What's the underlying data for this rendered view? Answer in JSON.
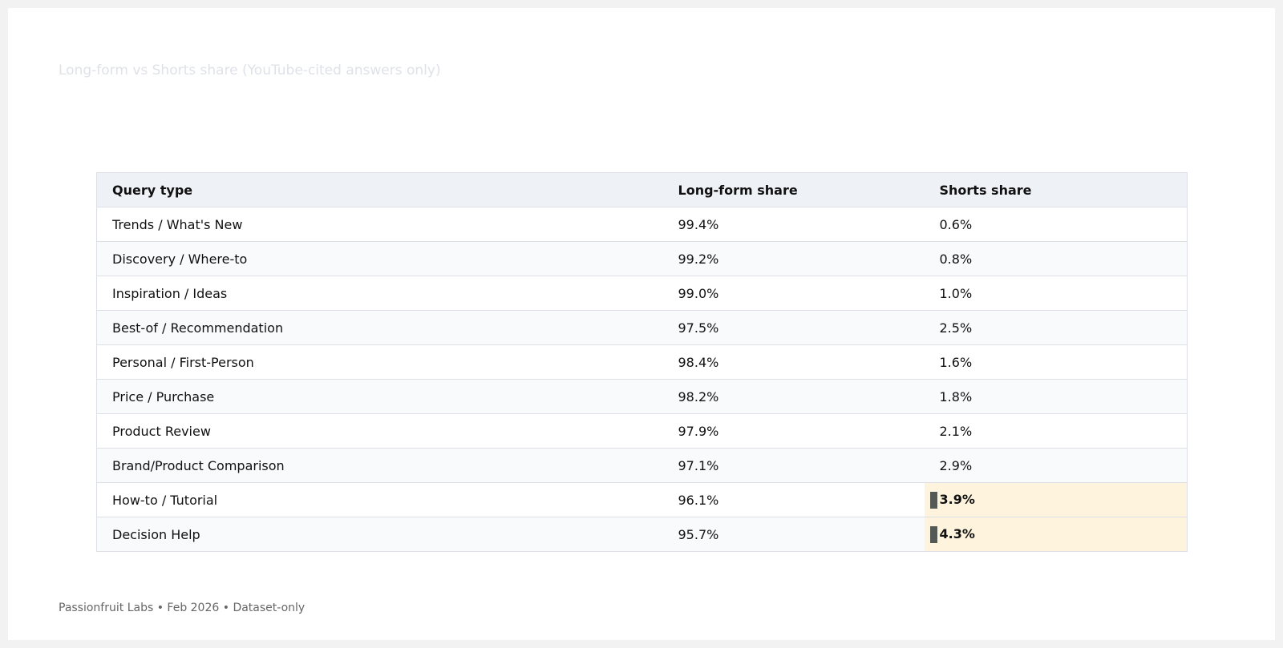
{
  "title": "Long-form vs Shorts share (YouTube-cited answers only)",
  "table": {
    "headers": [
      "Query type",
      "Long-form share",
      "Shorts share"
    ],
    "rows": [
      {
        "query": "Trends / What's New",
        "longform": "99.4%",
        "shorts": "0.6%",
        "highlight": false
      },
      {
        "query": "Discovery / Where-to",
        "longform": "99.2%",
        "shorts": "0.8%",
        "highlight": false
      },
      {
        "query": "Inspiration / Ideas",
        "longform": "99.0%",
        "shorts": "1.0%",
        "highlight": false
      },
      {
        "query": "Best-of / Recommendation",
        "longform": "97.5%",
        "shorts": "2.5%",
        "highlight": false
      },
      {
        "query": "Personal / First-Person",
        "longform": "98.4%",
        "shorts": "1.6%",
        "highlight": false
      },
      {
        "query": "Price / Purchase",
        "longform": "98.2%",
        "shorts": "1.8%",
        "highlight": false
      },
      {
        "query": "Product Review",
        "longform": "97.9%",
        "shorts": "2.1%",
        "highlight": false
      },
      {
        "query": "Brand/Product Comparison",
        "longform": "97.1%",
        "shorts": "2.9%",
        "highlight": false
      },
      {
        "query": "How-to / Tutorial",
        "longform": "96.1%",
        "shorts": "3.9%",
        "highlight": true
      },
      {
        "query": "Decision Help",
        "longform": "95.7%",
        "shorts": "4.3%",
        "highlight": true
      }
    ]
  },
  "footer": "Passionfruit Labs • Feb 2026 • Dataset-only",
  "colors": {
    "highlight_background": "#fef4de",
    "highlight_marker": "#555955",
    "header_background": "#eef1f5"
  }
}
